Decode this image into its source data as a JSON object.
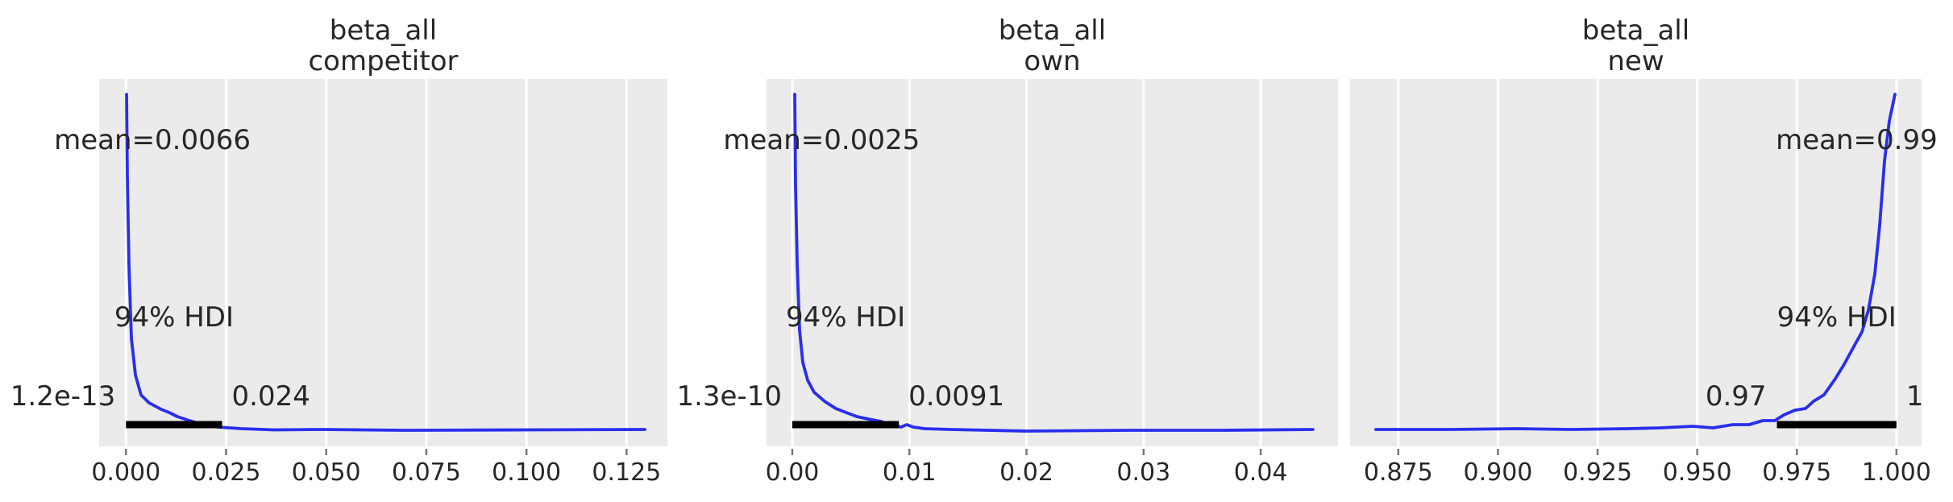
{
  "style": {
    "figure_bg": "#ffffff",
    "plot_bg": "#ebebeb",
    "grid_color": "#ffffff",
    "curve_color": "#2a2eec",
    "hdi_bar_color": "#000000",
    "tick_mark_color": "#777777",
    "text_color": "#262626"
  },
  "chart_data": [
    {
      "type": "kde",
      "title_line1": "beta_all",
      "title_line2": "competitor",
      "xlabel": "",
      "ylabel": "",
      "legend": "none",
      "grid": "vertical-white-on-gray",
      "xlim": [
        -0.0067,
        0.1352
      ],
      "mean": {
        "value": 0.0066,
        "label": "mean=0.0066"
      },
      "hdi": {
        "prob_label": "94% HDI",
        "lo": 1.2e-13,
        "hi": 0.024,
        "lo_label": "1.2e-13",
        "hi_label": "0.024"
      },
      "xticks": [
        {
          "v": 0.0,
          "label": "0.000"
        },
        {
          "v": 0.025,
          "label": "0.025"
        },
        {
          "v": 0.05,
          "label": "0.050"
        },
        {
          "v": 0.075,
          "label": "0.075"
        },
        {
          "v": 0.1,
          "label": "0.100"
        },
        {
          "v": 0.125,
          "label": "0.125"
        }
      ],
      "curve": [
        [
          0.00014,
          1.0
        ],
        [
          0.00034,
          0.752
        ],
        [
          0.00075,
          0.488
        ],
        [
          0.00135,
          0.272
        ],
        [
          0.00236,
          0.163
        ],
        [
          0.00377,
          0.103
        ],
        [
          0.00578,
          0.0793
        ],
        [
          0.0088,
          0.0601
        ],
        [
          0.01082,
          0.0505
        ],
        [
          0.01283,
          0.0385
        ],
        [
          0.01585,
          0.0264
        ],
        [
          0.01786,
          0.0192
        ],
        [
          0.02289,
          0.0072
        ],
        [
          0.02893,
          0.0024
        ],
        [
          0.03698,
          -0.0012
        ],
        [
          0.04906,
          0.0
        ],
        [
          0.06919,
          -0.0024
        ],
        [
          0.09939,
          -0.0012
        ],
        [
          0.12958,
          0.0
        ]
      ]
    },
    {
      "type": "kde",
      "title_line1": "beta_all",
      "title_line2": "own",
      "xlabel": "",
      "ylabel": "",
      "legend": "none",
      "grid": "vertical-white-on-gray",
      "xlim": [
        -0.0022,
        0.0466
      ],
      "mean": {
        "value": 0.0025,
        "label": "mean=0.0025"
      },
      "hdi": {
        "prob_label": "94% HDI",
        "lo": 1.3e-10,
        "hi": 0.0091,
        "lo_label": "1.3e-10",
        "hi_label": "0.0091"
      },
      "xticks": [
        {
          "v": 0.0,
          "label": "0.00"
        },
        {
          "v": 0.01,
          "label": "0.01"
        },
        {
          "v": 0.02,
          "label": "0.02"
        },
        {
          "v": 0.03,
          "label": "0.03"
        },
        {
          "v": 0.04,
          "label": "0.04"
        }
      ],
      "curve": [
        [
          0.00021,
          1.0
        ],
        [
          0.00028,
          0.728
        ],
        [
          0.00042,
          0.488
        ],
        [
          0.00062,
          0.296
        ],
        [
          0.0009,
          0.2
        ],
        [
          0.00131,
          0.147
        ],
        [
          0.00186,
          0.111
        ],
        [
          0.00276,
          0.084
        ],
        [
          0.00372,
          0.0625
        ],
        [
          0.00461,
          0.0505
        ],
        [
          0.00551,
          0.0385
        ],
        [
          0.00647,
          0.0312
        ],
        [
          0.00757,
          0.024
        ],
        [
          0.00819,
          0.0168
        ],
        [
          0.00874,
          0.012
        ],
        [
          0.00929,
          0.0072
        ],
        [
          0.00978,
          0.0144
        ],
        [
          0.01033,
          0.0072
        ],
        [
          0.01129,
          0.0024
        ],
        [
          0.01356,
          0.0
        ],
        [
          0.02003,
          -0.0048
        ],
        [
          0.0287,
          -0.0024
        ],
        [
          0.03696,
          -0.0024
        ],
        [
          0.04446,
          0.0
        ]
      ]
    },
    {
      "type": "kde",
      "title_line1": "beta_all",
      "title_line2": "new",
      "xlabel": "",
      "ylabel": "",
      "legend": "none",
      "grid": "vertical-white-on-gray",
      "xlim": [
        0.8629,
        1.0063
      ],
      "mean": {
        "value": 0.99,
        "label": "mean=0.99"
      },
      "hdi": {
        "prob_label": "94% HDI",
        "lo": 0.97,
        "hi": 1.0,
        "lo_label": "0.97",
        "hi_label": "1"
      },
      "xticks": [
        {
          "v": 0.875,
          "label": "0.875"
        },
        {
          "v": 0.9,
          "label": "0.900"
        },
        {
          "v": 0.925,
          "label": "0.925"
        },
        {
          "v": 0.95,
          "label": "0.950"
        },
        {
          "v": 0.975,
          "label": "0.975"
        },
        {
          "v": 1.0,
          "label": "1.000"
        }
      ],
      "curve": [
        [
          0.86937,
          0.0
        ],
        [
          0.88818,
          0.0
        ],
        [
          0.90436,
          0.0024
        ],
        [
          0.91852,
          0.0
        ],
        [
          0.93268,
          0.0024
        ],
        [
          0.94077,
          0.0048
        ],
        [
          0.94886,
          0.0096
        ],
        [
          0.95391,
          0.0048
        ],
        [
          0.95897,
          0.0144
        ],
        [
          0.96301,
          0.0144
        ],
        [
          0.96645,
          0.0264
        ],
        [
          0.96949,
          0.0264
        ],
        [
          0.97171,
          0.0433
        ],
        [
          0.97454,
          0.0577
        ],
        [
          0.97717,
          0.0625
        ],
        [
          0.9792,
          0.0841
        ],
        [
          0.98182,
          0.1034
        ],
        [
          0.98466,
          0.1514
        ],
        [
          0.98688,
          0.1947
        ],
        [
          0.98931,
          0.2476
        ],
        [
          0.99133,
          0.2909
        ],
        [
          0.99295,
          0.3558
        ],
        [
          0.99457,
          0.4639
        ],
        [
          0.99578,
          0.6082
        ],
        [
          0.997,
          0.8005
        ],
        [
          0.99821,
          0.9207
        ],
        [
          0.99963,
          1.0
        ]
      ]
    }
  ]
}
